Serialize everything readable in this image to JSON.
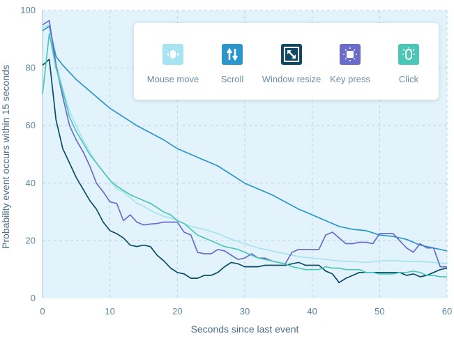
{
  "chart_data": {
    "type": "line",
    "xlabel": "Seconds since last event",
    "ylabel": "Probability event occurs within 15 seconds",
    "xlim": [
      0,
      60
    ],
    "ylim": [
      0,
      100
    ],
    "xticks": [
      0,
      10,
      20,
      30,
      40,
      50,
      60
    ],
    "yticks": [
      0,
      20,
      40,
      60,
      80,
      100
    ],
    "grid": true,
    "legend_position": "top-right",
    "series": [
      {
        "name": "Mouse move",
        "color": "#a7e3f1",
        "icon": "mouse-move-icon",
        "x": [
          0,
          1,
          2,
          3,
          4,
          5,
          6,
          7,
          8,
          9,
          10,
          11,
          12,
          13,
          14,
          15,
          16,
          17,
          18,
          19,
          20,
          22,
          24,
          26,
          28,
          30,
          32,
          34,
          36,
          38,
          40,
          42,
          44,
          46,
          48,
          50,
          52,
          54,
          56,
          58,
          60
        ],
        "y": [
          94,
          95,
          82,
          73,
          65,
          60,
          55,
          51,
          47,
          44,
          41,
          38,
          37,
          35,
          33,
          32,
          30.5,
          29.5,
          28.5,
          28,
          27,
          25,
          24,
          22.5,
          20.5,
          19,
          17.5,
          16.5,
          15.5,
          14.5,
          14,
          13.5,
          13,
          12.8,
          12.5,
          13,
          13.2,
          12.8,
          12.8,
          12.5,
          12
        ]
      },
      {
        "name": "Scroll",
        "color": "#2b95cc",
        "icon": "scroll-icon",
        "x": [
          0,
          1,
          2,
          3,
          4,
          5,
          6,
          7,
          8,
          9,
          10,
          12,
          14,
          16,
          18,
          20,
          22,
          24,
          26,
          28,
          30,
          32,
          34,
          36,
          38,
          40,
          42,
          44,
          46,
          48,
          50,
          52,
          54,
          56,
          58,
          60
        ],
        "y": [
          93,
          94.5,
          84,
          81,
          78.5,
          76,
          74,
          72,
          70,
          68,
          66,
          63,
          60,
          57.5,
          55,
          52,
          50,
          48,
          46,
          43,
          40,
          38,
          36,
          33.5,
          31,
          29,
          27,
          25,
          24,
          23.5,
          22,
          21.5,
          20.5,
          18.5,
          17.5,
          16.5
        ]
      },
      {
        "name": "Window resize",
        "color": "#0b4a66",
        "icon": "window-resize-icon",
        "x": [
          0,
          1,
          2,
          3,
          4,
          5,
          6,
          7,
          8,
          9,
          10,
          11,
          12,
          13,
          14,
          15,
          16,
          17,
          18,
          19,
          20,
          21,
          22,
          23,
          24,
          25,
          26,
          27,
          28,
          29,
          30,
          31,
          32,
          33,
          34,
          35,
          36,
          37,
          38,
          39,
          40,
          41,
          42,
          43,
          44,
          45,
          46,
          47,
          48,
          49,
          50,
          51,
          52,
          53,
          54,
          55,
          56,
          57,
          58,
          59,
          60
        ],
        "y": [
          81,
          83,
          62,
          52,
          47,
          42,
          38,
          34,
          31,
          26.5,
          23.5,
          22.5,
          21,
          18.5,
          18,
          18.5,
          18,
          15,
          13,
          10.5,
          9,
          8.5,
          7,
          7,
          8,
          8,
          9,
          11,
          12.5,
          12,
          11,
          11,
          11,
          11.5,
          11.5,
          11.5,
          11.5,
          12,
          12.5,
          11.5,
          11.5,
          11.5,
          9.5,
          8.5,
          5.5,
          7,
          8,
          9,
          9,
          9,
          9,
          9,
          9,
          9,
          8,
          8.5,
          7.5,
          8,
          9,
          10,
          10.5
        ]
      },
      {
        "name": "Key press",
        "color": "#6b6bc9",
        "icon": "key-press-icon",
        "x": [
          0,
          1,
          2,
          3,
          4,
          5,
          6,
          7,
          8,
          9,
          10,
          11,
          12,
          13,
          14,
          15,
          16,
          17,
          18,
          19,
          20,
          21,
          22,
          23,
          24,
          25,
          26,
          27,
          28,
          29,
          30,
          31,
          32,
          33,
          34,
          35,
          36,
          37,
          38,
          39,
          40,
          41,
          42,
          43,
          44,
          45,
          46,
          47,
          48,
          49,
          50,
          51,
          52,
          53,
          54,
          55,
          56,
          57,
          58,
          59,
          60
        ],
        "y": [
          95,
          96.5,
          81,
          70,
          60,
          55,
          51,
          46,
          40,
          37,
          33.5,
          33,
          27,
          29,
          26.5,
          25.5,
          25.8,
          26,
          26.5,
          26.5,
          26.5,
          23,
          22,
          16,
          15.5,
          15.5,
          17,
          16.5,
          15,
          13.5,
          14,
          15.5,
          14,
          14,
          13,
          12.5,
          12,
          16,
          17,
          17,
          17,
          17,
          22,
          23,
          21,
          19,
          19,
          19.5,
          19.5,
          19,
          22.5,
          22.5,
          22.5,
          20,
          17.5,
          16,
          19,
          17.5,
          17.5,
          11,
          11
        ]
      },
      {
        "name": "Click",
        "color": "#4cc6b6",
        "icon": "click-icon",
        "x": [
          0,
          1,
          2,
          3,
          4,
          5,
          6,
          7,
          8,
          9,
          10,
          11,
          12,
          13,
          14,
          15,
          16,
          17,
          18,
          19,
          20,
          21,
          22,
          23,
          24,
          25,
          26,
          27,
          28,
          29,
          30,
          31,
          32,
          33,
          34,
          35,
          36,
          37,
          38,
          39,
          40,
          41,
          42,
          43,
          44,
          45,
          46,
          47,
          48,
          49,
          50,
          51,
          52,
          53,
          54,
          55,
          56,
          57,
          58,
          59,
          60
        ],
        "y": [
          71,
          92,
          80,
          72,
          63,
          58,
          54,
          50,
          47,
          44,
          41,
          39,
          37.5,
          36,
          35,
          34,
          33,
          31.5,
          30,
          29,
          27,
          26,
          24,
          22,
          21,
          20,
          19,
          18,
          17.5,
          17,
          16,
          15,
          14,
          13.5,
          13,
          12.5,
          12,
          11,
          10.5,
          10,
          10,
          10,
          11,
          10.5,
          10.5,
          10,
          10,
          10,
          9,
          9,
          8.5,
          8.5,
          8.5,
          9,
          9,
          9.5,
          9,
          8,
          8,
          7.5,
          7.5
        ]
      }
    ]
  }
}
